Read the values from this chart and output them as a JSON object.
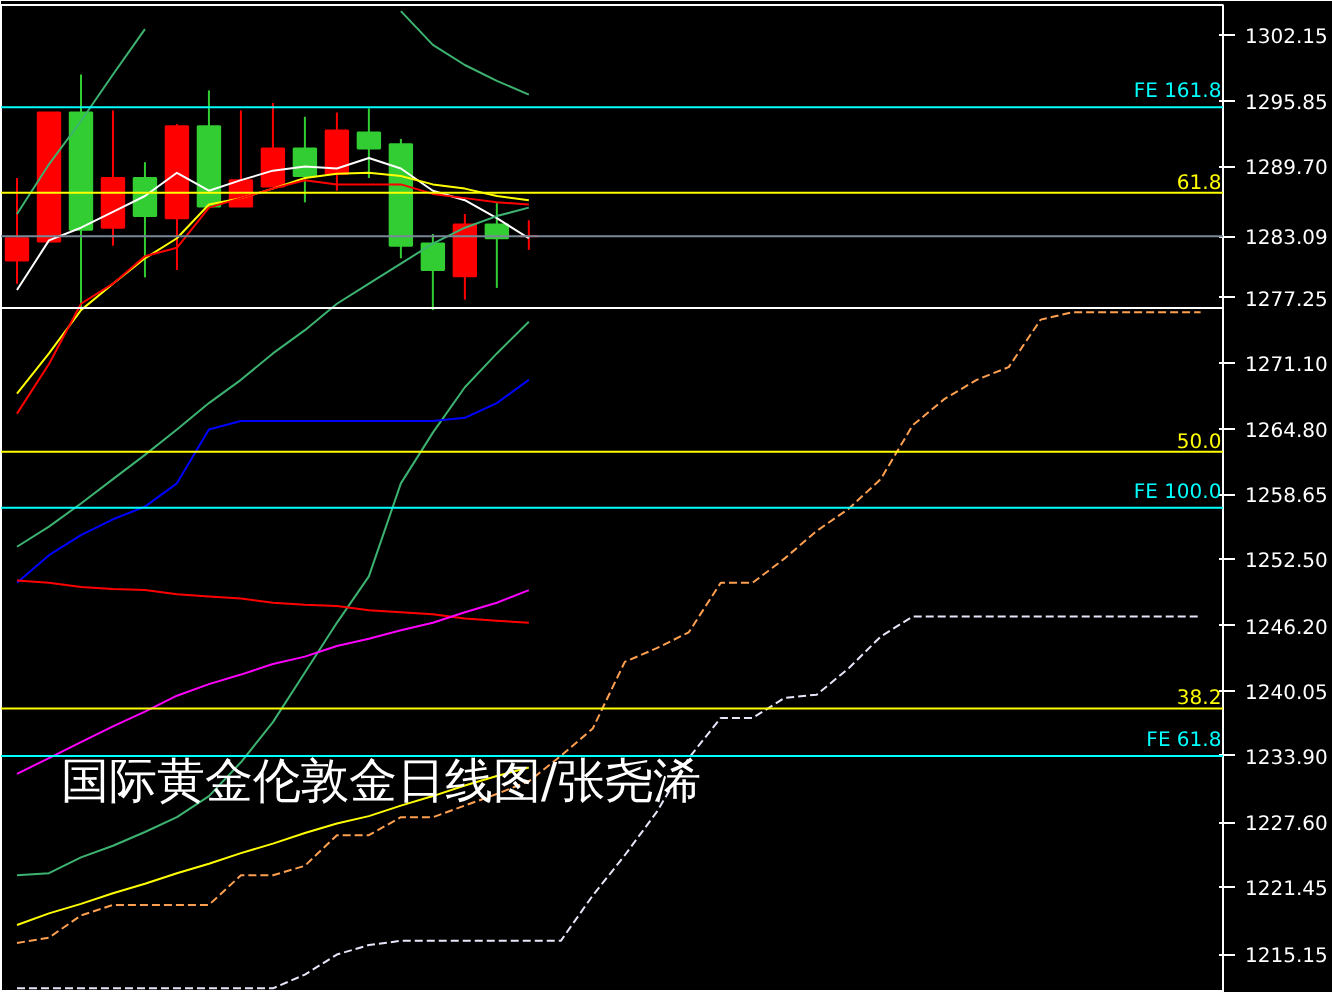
{
  "chart_data": {
    "type": "candlestick",
    "title": "国际黄金伦敦金日线图/张尧浠",
    "categories": [
      null,
      null,
      null,
      null,
      null,
      null,
      null,
      null,
      null,
      null,
      null,
      null,
      null,
      null,
      null,
      null,
      null,
      null,
      null,
      null,
      null,
      null,
      null,
      null,
      null,
      null,
      null,
      null,
      null,
      null,
      null,
      null,
      null,
      null,
      null,
      null,
      null,
      null
    ],
    "ohlc": [
      [
        1280.8,
        1288.6,
        1278.6,
        1282.9
      ],
      [
        1282.6,
        1294.8,
        1282.6,
        1294.8
      ],
      [
        1294.8,
        1298.4,
        1276.1,
        1283.7
      ],
      [
        1283.9,
        1295.0,
        1282.2,
        1288.6
      ],
      [
        1288.6,
        1290.1,
        1279.2,
        1285.0
      ],
      [
        1284.8,
        1293.7,
        1279.9,
        1293.5
      ],
      [
        1293.5,
        1296.9,
        1285.9,
        1285.9
      ],
      [
        1285.9,
        1295.0,
        1285.9,
        1288.4
      ],
      [
        1287.8,
        1295.7,
        1287.8,
        1291.4
      ],
      [
        1291.4,
        1294.4,
        1286.3,
        1288.8
      ],
      [
        1289.0,
        1294.8,
        1287.4,
        1293.1
      ],
      [
        1292.9,
        1295.2,
        1288.6,
        1291.4
      ],
      [
        1291.8,
        1292.3,
        1281.0,
        1282.2
      ],
      [
        1282.4,
        1283.3,
        1276.1,
        1279.9
      ],
      [
        1279.3,
        1285.2,
        1277.1,
        1284.2
      ],
      [
        1284.2,
        1286.3,
        1278.2,
        1282.9
      ],
      [
        1283.1,
        1284.6,
        1281.8,
        1283.1
      ],
      null,
      null,
      null,
      null,
      null,
      null,
      null,
      null,
      null,
      null,
      null,
      null,
      null,
      null,
      null,
      null,
      null,
      null,
      null,
      null,
      null
    ],
    "colors": [
      "#ff0000",
      "#ff0000",
      "#32cd32",
      "#ff0000",
      "#32cd32",
      "#ff0000",
      "#32cd32",
      "#ff0000",
      "#ff0000",
      "#32cd32",
      "#ff0000",
      "#32cd32",
      "#32cd32",
      "#32cd32",
      "#ff0000",
      "#32cd32",
      "#ff0000",
      null,
      null,
      null,
      null,
      null,
      null,
      null,
      null,
      null,
      null,
      null,
      null,
      null,
      null,
      null,
      null,
      null,
      null,
      null,
      null,
      null
    ],
    "series": [
      {
        "type": "line",
        "color": "#ffffff",
        "values": [
          1278.0,
          1282.7,
          1283.9,
          1285.4,
          1286.9,
          1289.1,
          1287.4,
          1288.4,
          1289.3,
          1289.7,
          1289.5,
          1290.5,
          1289.5,
          1287.4,
          1286.5,
          1284.8,
          1282.9,
          null,
          null,
          null,
          null,
          null,
          null,
          null,
          null,
          null,
          null,
          null,
          null,
          null,
          null,
          null,
          null,
          null,
          null,
          null,
          null,
          null
        ]
      },
      {
        "type": "line",
        "color": "#ffff00",
        "values": [
          1268.2,
          1272.0,
          1276.1,
          1278.6,
          1281.0,
          1282.9,
          1286.1,
          1286.7,
          1287.6,
          1288.6,
          1289.0,
          1289.1,
          1288.8,
          1288.0,
          1287.6,
          1286.9,
          1286.5,
          null,
          null,
          null,
          null,
          null,
          null,
          null,
          null,
          null,
          null,
          null,
          null,
          null,
          null,
          null,
          null,
          null,
          null,
          null,
          null,
          null
        ]
      },
      {
        "type": "line",
        "color": "#ff0000",
        "values": [
          1266.3,
          1271.0,
          1276.7,
          1278.6,
          1281.2,
          1282.0,
          1285.8,
          1286.7,
          1287.6,
          1288.4,
          1288.0,
          1288.0,
          1288.0,
          1287.1,
          1286.7,
          1286.3,
          1286.1,
          null,
          null,
          null,
          null,
          null,
          null,
          null,
          null,
          null,
          null,
          null,
          null,
          null,
          null,
          null,
          null,
          null,
          null,
          null,
          null,
          null
        ]
      },
      {
        "type": "line",
        "color": "#3cb371",
        "values": [
          1285.2,
          1289.9,
          1294.0,
          1298.4,
          1302.7,
          null,
          null,
          null,
          null,
          null,
          null,
          null,
          1304.4,
          1301.2,
          1299.3,
          1297.8,
          1296.5,
          null,
          null,
          null,
          null,
          null,
          null,
          null,
          null,
          null,
          null,
          null,
          null,
          null,
          null,
          null,
          null,
          null,
          null,
          null,
          null,
          null
        ]
      },
      {
        "type": "line",
        "color": "#3cb371",
        "values": [
          1253.7,
          1255.6,
          1257.8,
          1260.1,
          1262.4,
          1264.8,
          1267.3,
          1269.5,
          1272.0,
          1274.2,
          1276.7,
          1278.6,
          1280.5,
          1282.4,
          1283.9,
          1285.0,
          1285.8,
          null,
          null,
          null,
          null,
          null,
          null,
          null,
          null,
          null,
          null,
          null,
          null,
          null,
          null,
          null,
          null,
          null,
          null,
          null,
          null,
          null
        ]
      },
      {
        "type": "line",
        "color": "#3cb371",
        "values": [
          1222.6,
          1222.8,
          1224.3,
          1225.4,
          1226.7,
          1228.1,
          1230.1,
          1233.3,
          1237.1,
          1241.8,
          1246.5,
          1250.9,
          1259.7,
          1264.5,
          1268.8,
          1272.0,
          1275.0,
          null,
          null,
          null,
          null,
          null,
          null,
          null,
          null,
          null,
          null,
          null,
          null,
          null,
          null,
          null,
          null,
          null,
          null,
          null,
          null,
          null
        ]
      },
      {
        "type": "line",
        "color": "#0000ff",
        "values": [
          1250.3,
          1252.9,
          1254.8,
          1256.3,
          1257.5,
          1259.7,
          1264.8,
          1265.6,
          1265.6,
          1265.6,
          1265.6,
          1265.6,
          1265.6,
          1265.6,
          1265.9,
          1267.3,
          1269.5,
          null,
          null,
          null,
          null,
          null,
          null,
          null,
          null,
          null,
          null,
          null,
          null,
          null,
          null,
          null,
          null,
          null,
          null,
          null,
          null,
          null
        ]
      },
      {
        "type": "line",
        "color": "#ff0000",
        "values": [
          1250.5,
          1250.3,
          1249.9,
          1249.7,
          1249.6,
          1249.2,
          1249.0,
          1248.8,
          1248.4,
          1248.2,
          1248.1,
          1247.7,
          1247.5,
          1247.3,
          1246.9,
          1246.7,
          1246.5,
          null,
          null,
          null,
          null,
          null,
          null,
          null,
          null,
          null,
          null,
          null,
          null,
          null,
          null,
          null,
          null,
          null,
          null,
          null,
          null,
          null
        ]
      },
      {
        "type": "line",
        "color": "#ff00ff",
        "values": [
          1232.2,
          1233.7,
          1235.2,
          1236.7,
          1238.1,
          1239.6,
          1240.7,
          1241.6,
          1242.6,
          1243.3,
          1244.3,
          1245.0,
          1245.8,
          1246.5,
          1247.5,
          1248.4,
          1249.6,
          null,
          null,
          null,
          null,
          null,
          null,
          null,
          null,
          null,
          null,
          null,
          null,
          null,
          null,
          null,
          null,
          null,
          null,
          null,
          null,
          null
        ]
      },
      {
        "type": "line",
        "color": "#ffff00",
        "values": [
          1217.9,
          1219.0,
          1219.9,
          1220.9,
          1221.8,
          1222.8,
          1223.7,
          1224.7,
          1225.6,
          1226.6,
          1227.5,
          1228.2,
          1229.2,
          1230.1,
          1231.1,
          1232.0,
          1232.8,
          null,
          null,
          null,
          null,
          null,
          null,
          null,
          null,
          null,
          null,
          null,
          null,
          null,
          null,
          null,
          null,
          null,
          null,
          null,
          null,
          null
        ]
      },
      {
        "type": "line",
        "color": "#ffa050",
        "line_style": "dashed",
        "values": [
          1216.2,
          1216.7,
          1218.8,
          1219.8,
          1219.8,
          1219.8,
          1219.8,
          1222.6,
          1222.6,
          1223.5,
          1226.4,
          1226.4,
          1228.1,
          1228.1,
          1229.2,
          1230.3,
          1231.5,
          1233.9,
          1236.5,
          1242.8,
          1244.1,
          1245.6,
          1250.3,
          1250.3,
          1252.6,
          1255.2,
          1257.3,
          1260.1,
          1265.2,
          1267.7,
          1269.5,
          1270.7,
          1275.2,
          1275.9,
          1275.9,
          1275.9,
          1275.9,
          1275.9
        ]
      },
      {
        "type": "line",
        "color": "#e6e6fa",
        "line_style": "dashed",
        "values": [
          1211.9,
          1211.9,
          1211.9,
          1211.9,
          1211.9,
          1211.9,
          1211.9,
          1211.9,
          1211.9,
          1213.2,
          1215.1,
          1216.0,
          1216.4,
          1216.4,
          1216.4,
          1216.4,
          1216.4,
          1216.4,
          1220.7,
          1224.5,
          1228.6,
          1233.7,
          1237.5,
          1237.5,
          1239.4,
          1239.7,
          1242.2,
          1245.2,
          1247.1,
          1247.1,
          1247.1,
          1247.1,
          1247.1,
          1247.1,
          1247.1,
          1247.1,
          1247.1,
          1247.1
        ]
      }
    ],
    "ylim": [
      1211.46,
      1304.98
    ],
    "yticks": [
      1302.15,
      1295.85,
      {
        "value": 1289.7,
        "label": "1289.70"
      },
      1283.09,
      1277.25,
      {
        "value": 1271.1,
        "label": "1271.10"
      },
      {
        "value": 1264.8,
        "label": "1264.80"
      },
      1258.65,
      {
        "value": 1252.5,
        "label": "1252.50"
      },
      {
        "value": 1246.2,
        "label": "1246.20"
      },
      1240.05,
      {
        "value": 1233.9,
        "label": "1233.90"
      },
      {
        "value": 1227.6,
        "label": "1227.60"
      },
      1221.45,
      1215.15
    ],
    "tick_labels": "y",
    "grid": false,
    "annotations": [
      {
        "text": "61.8",
        "y": 1287.2
      },
      {
        "text": "50.0",
        "y": 1262.7
      },
      {
        "text": "38.2",
        "y": 1238.4
      }
    ],
    "ref_lines": [
      {
        "axis": "y",
        "value": 1295.3,
        "label": "FE 161.8",
        "color": "#00ffff"
      },
      {
        "axis": "y",
        "value": 1287.2,
        "label": null,
        "color": "#ffff00"
      },
      {
        "axis": "y",
        "value": 1283.09,
        "label": null,
        "color": "#778899"
      },
      {
        "axis": "y",
        "value": 1276.3,
        "label": null,
        "color": "#ffffff"
      },
      {
        "axis": "y",
        "value": 1262.7,
        "label": null,
        "color": "#ffff00"
      },
      {
        "axis": "y",
        "value": 1257.4,
        "label": "FE 100.0",
        "color": "#00ffff"
      },
      {
        "axis": "y",
        "value": 1238.4,
        "label": null,
        "color": "#ffff00"
      },
      {
        "axis": "y",
        "value": 1233.9,
        "label": "FE 61.8",
        "color": "#00ffff"
      }
    ]
  }
}
